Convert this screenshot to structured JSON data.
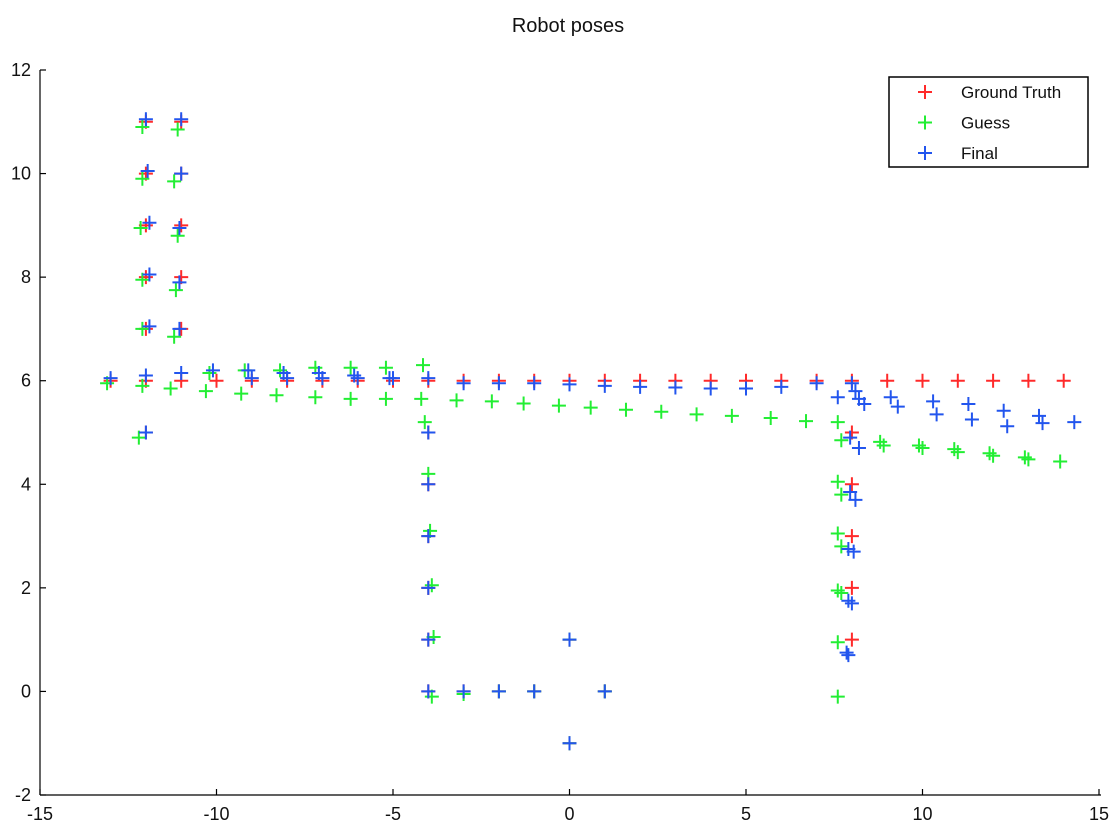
{
  "chart_data": {
    "type": "scatter",
    "title": "Robot poses",
    "xlabel": "",
    "ylabel": "",
    "xlim": [
      -15,
      15
    ],
    "ylim": [
      -2,
      12
    ],
    "xticks": [
      -15,
      -10,
      -5,
      0,
      5,
      10,
      15
    ],
    "yticks": [
      -2,
      0,
      2,
      4,
      6,
      8,
      10,
      12
    ],
    "grid": false,
    "legend_position": "top-right",
    "marker": "+",
    "series": [
      {
        "name": "Ground Truth",
        "color": "#ff2a2a",
        "points": [
          [
            0,
            1
          ],
          [
            0,
            -1
          ],
          [
            1,
            0
          ],
          [
            -1,
            0
          ],
          [
            -2,
            0
          ],
          [
            -3,
            0
          ],
          [
            -4,
            0
          ],
          [
            -4,
            1
          ],
          [
            -4,
            2
          ],
          [
            -4,
            3
          ],
          [
            -4,
            4
          ],
          [
            -4,
            5
          ],
          [
            -4,
            6
          ],
          [
            -5,
            6
          ],
          [
            -6,
            6
          ],
          [
            -7,
            6
          ],
          [
            -8,
            6
          ],
          [
            -9,
            6
          ],
          [
            -10,
            6
          ],
          [
            -11,
            6
          ],
          [
            -12,
            6
          ],
          [
            -13,
            6
          ],
          [
            -12,
            5
          ],
          [
            -12,
            7
          ],
          [
            -12,
            8
          ],
          [
            -12,
            9
          ],
          [
            -12,
            10
          ],
          [
            -12,
            11
          ],
          [
            -11,
            11
          ],
          [
            -11,
            10
          ],
          [
            -11,
            9
          ],
          [
            -11,
            8
          ],
          [
            -11,
            7
          ],
          [
            -3,
            6
          ],
          [
            -2,
            6
          ],
          [
            -1,
            6
          ],
          [
            0,
            6
          ],
          [
            1,
            6
          ],
          [
            2,
            6
          ],
          [
            3,
            6
          ],
          [
            4,
            6
          ],
          [
            5,
            6
          ],
          [
            6,
            6
          ],
          [
            7,
            6
          ],
          [
            8,
            6
          ],
          [
            9,
            6
          ],
          [
            10,
            6
          ],
          [
            11,
            6
          ],
          [
            12,
            6
          ],
          [
            13,
            6
          ],
          [
            14,
            6
          ],
          [
            8,
            5
          ],
          [
            8,
            4
          ],
          [
            8,
            3
          ],
          [
            8,
            2
          ],
          [
            8,
            1
          ]
        ]
      },
      {
        "name": "Guess",
        "color": "#22ee33",
        "points": [
          [
            0,
            1
          ],
          [
            0,
            -1
          ],
          [
            1,
            0
          ],
          [
            -1,
            0
          ],
          [
            -2,
            0
          ],
          [
            -3,
            -0.05
          ],
          [
            -3.9,
            -0.1
          ],
          [
            -3.85,
            1.05
          ],
          [
            -3.9,
            2.05
          ],
          [
            -3.95,
            3.1
          ],
          [
            -4.0,
            4.2
          ],
          [
            -4.1,
            5.2
          ],
          [
            -4.15,
            6.3
          ],
          [
            -5.2,
            6.25
          ],
          [
            -6.2,
            6.25
          ],
          [
            -7.2,
            6.25
          ],
          [
            -8.2,
            6.2
          ],
          [
            -9.2,
            6.2
          ],
          [
            -10.2,
            6.15
          ],
          [
            -11.3,
            5.85
          ],
          [
            -12.1,
            5.9
          ],
          [
            -13.1,
            5.95
          ],
          [
            -12.2,
            4.9
          ],
          [
            -12.1,
            7.0
          ],
          [
            -12.1,
            7.95
          ],
          [
            -12.15,
            8.95
          ],
          [
            -12.1,
            9.9
          ],
          [
            -12.1,
            10.9
          ],
          [
            -11.1,
            10.85
          ],
          [
            -11.2,
            9.85
          ],
          [
            -11.1,
            8.8
          ],
          [
            -11.15,
            7.75
          ],
          [
            -11.2,
            6.85
          ],
          [
            -10.3,
            5.8
          ],
          [
            -9.3,
            5.75
          ],
          [
            -8.3,
            5.72
          ],
          [
            -7.2,
            5.68
          ],
          [
            -6.2,
            5.65
          ],
          [
            -5.2,
            5.65
          ],
          [
            -4.2,
            5.65
          ],
          [
            -3.2,
            5.62
          ],
          [
            -2.2,
            5.6
          ],
          [
            -1.3,
            5.56
          ],
          [
            -0.3,
            5.52
          ],
          [
            0.6,
            5.48
          ],
          [
            1.6,
            5.44
          ],
          [
            2.6,
            5.4
          ],
          [
            3.6,
            5.35
          ],
          [
            4.6,
            5.32
          ],
          [
            5.7,
            5.28
          ],
          [
            6.7,
            5.22
          ],
          [
            7.6,
            5.2
          ],
          [
            7.7,
            4.85
          ],
          [
            8.8,
            4.82
          ],
          [
            8.9,
            4.75
          ],
          [
            9.9,
            4.75
          ],
          [
            10.0,
            4.7
          ],
          [
            10.9,
            4.68
          ],
          [
            11.0,
            4.62
          ],
          [
            11.9,
            4.6
          ],
          [
            12.0,
            4.55
          ],
          [
            12.9,
            4.52
          ],
          [
            13.0,
            4.48
          ],
          [
            13.9,
            4.44
          ],
          [
            7.6,
            4.05
          ],
          [
            7.7,
            3.8
          ],
          [
            7.6,
            3.05
          ],
          [
            7.7,
            2.8
          ],
          [
            7.6,
            1.95
          ],
          [
            7.7,
            1.9
          ],
          [
            7.6,
            0.95
          ],
          [
            7.6,
            -0.1
          ]
        ]
      },
      {
        "name": "Final",
        "color": "#2255ee",
        "points": [
          [
            0,
            1
          ],
          [
            0,
            -1
          ],
          [
            1,
            0
          ],
          [
            -1,
            0
          ],
          [
            -2,
            0
          ],
          [
            -3,
            0
          ],
          [
            -4,
            0
          ],
          [
            -4,
            1
          ],
          [
            -4,
            2
          ],
          [
            -4,
            3
          ],
          [
            -4,
            4
          ],
          [
            -4,
            5
          ],
          [
            -4,
            6.05
          ],
          [
            -5.1,
            6.05
          ],
          [
            -6.1,
            6.1
          ],
          [
            -7.1,
            6.15
          ],
          [
            -8.1,
            6.15
          ],
          [
            -9.1,
            6.2
          ],
          [
            -10.1,
            6.2
          ],
          [
            -11.0,
            6.15
          ],
          [
            -12.0,
            6.1
          ],
          [
            -13.0,
            6.05
          ],
          [
            -12.0,
            5.0
          ],
          [
            -11.9,
            7.05
          ],
          [
            -11.9,
            8.05
          ],
          [
            -11.9,
            9.05
          ],
          [
            -11.95,
            10.05
          ],
          [
            -12.0,
            11.05
          ],
          [
            -11.0,
            11.05
          ],
          [
            -11.0,
            10.0
          ],
          [
            -11.05,
            8.95
          ],
          [
            -11.05,
            7.9
          ],
          [
            -11.05,
            7.0
          ],
          [
            -9.0,
            6.05
          ],
          [
            -8.0,
            6.05
          ],
          [
            -7.0,
            6.05
          ],
          [
            -6.0,
            6.05
          ],
          [
            -5.0,
            6.05
          ],
          [
            -3.0,
            5.95
          ],
          [
            -2.0,
            5.95
          ],
          [
            -1.0,
            5.95
          ],
          [
            0.0,
            5.93
          ],
          [
            1.0,
            5.9
          ],
          [
            2.0,
            5.88
          ],
          [
            3.0,
            5.87
          ],
          [
            4.0,
            5.85
          ],
          [
            5.0,
            5.85
          ],
          [
            6.0,
            5.88
          ],
          [
            7.0,
            5.95
          ],
          [
            8.0,
            5.95
          ],
          [
            8.1,
            5.8
          ],
          [
            8.2,
            5.65
          ],
          [
            7.6,
            5.68
          ],
          [
            8.35,
            5.55
          ],
          [
            9.1,
            5.68
          ],
          [
            9.3,
            5.5
          ],
          [
            10.3,
            5.6
          ],
          [
            10.4,
            5.35
          ],
          [
            11.3,
            5.55
          ],
          [
            11.4,
            5.25
          ],
          [
            12.3,
            5.42
          ],
          [
            12.4,
            5.12
          ],
          [
            13.3,
            5.32
          ],
          [
            13.4,
            5.18
          ],
          [
            14.3,
            5.2
          ],
          [
            8.2,
            4.7
          ],
          [
            7.95,
            4.9
          ],
          [
            8.1,
            3.7
          ],
          [
            7.95,
            3.85
          ],
          [
            8.05,
            2.7
          ],
          [
            7.9,
            2.75
          ],
          [
            8.0,
            1.7
          ],
          [
            7.9,
            1.75
          ],
          [
            7.9,
            0.7
          ],
          [
            7.85,
            0.75
          ]
        ]
      }
    ]
  }
}
